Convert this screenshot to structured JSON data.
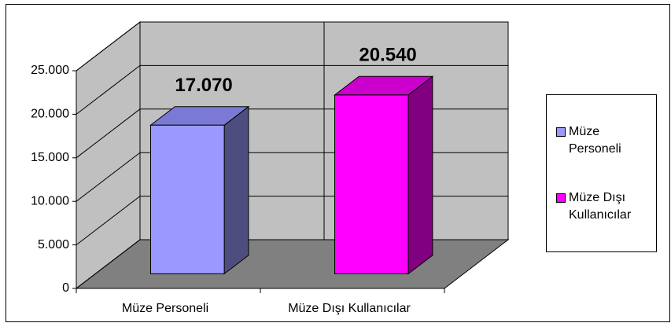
{
  "chart_data": {
    "type": "bar3d",
    "categories": [
      "Müze Personeli",
      "Müze Dışı Kullanıcılar"
    ],
    "values": [
      17070,
      20540
    ],
    "value_labels": [
      "17.070",
      "20.540"
    ],
    "colors": [
      "#9999ff",
      "#ff00ff"
    ],
    "side_colors": [
      "#4d4d80",
      "#800080"
    ],
    "top_colors": [
      "#7a7ad6",
      "#cc00cc"
    ],
    "ylim": [
      0,
      25000
    ],
    "yticks": [
      0,
      {
        "value": 5000,
        "label": "5.000"
      },
      {
        "value": 10000,
        "label": "10.000"
      },
      {
        "value": 15000,
        "label": "15.000"
      },
      {
        "value": 20000,
        "label": "20.000"
      },
      {
        "value": 25000,
        "label": "25.000"
      }
    ],
    "grid": true,
    "legend": "right"
  }
}
